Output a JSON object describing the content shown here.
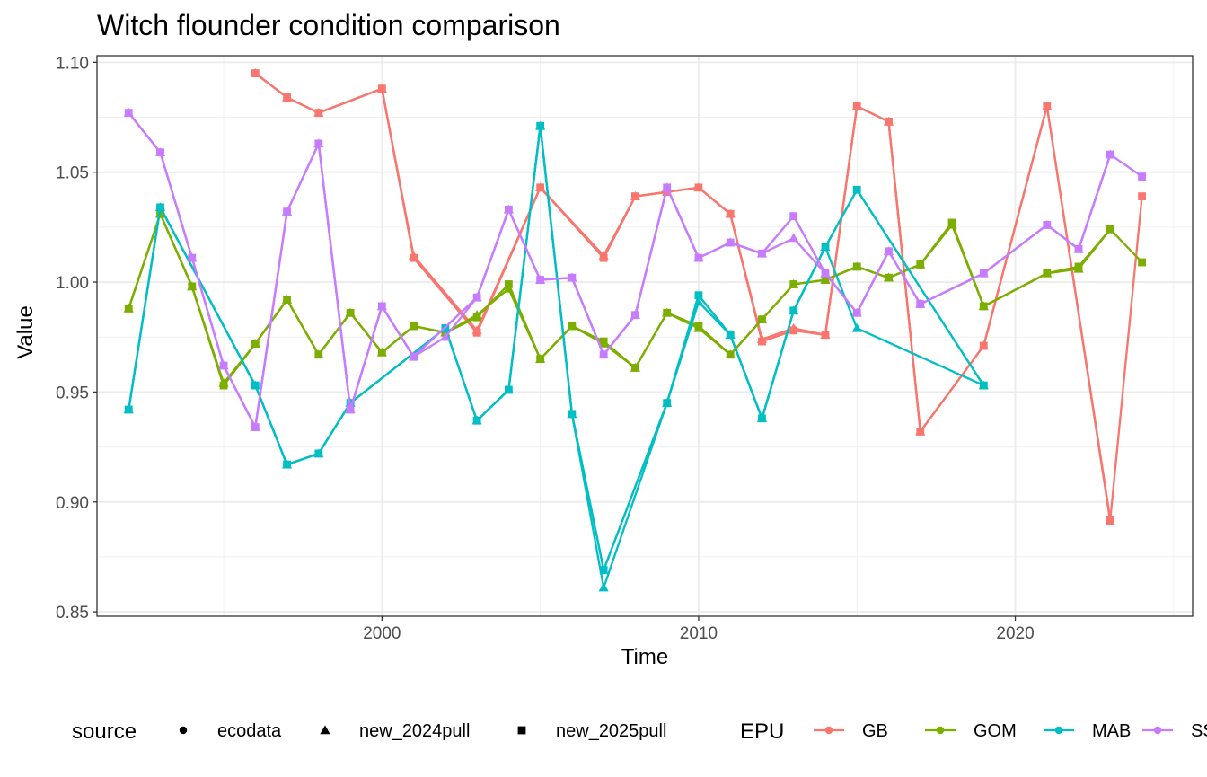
{
  "chart_data": {
    "type": "line",
    "title": "Witch flounder condition comparison",
    "xlabel": "Time",
    "ylabel": "Value",
    "xlim": [
      1991,
      2025.6
    ],
    "ylim": [
      0.848,
      1.103
    ],
    "x_ticks": [
      2000,
      2010,
      2020
    ],
    "y_ticks": [
      0.85,
      0.9,
      0.95,
      1.0,
      1.05,
      1.1
    ],
    "y_tick_labels": [
      "0.85",
      "0.90",
      "0.95",
      "1.00",
      "1.05",
      "1.10"
    ],
    "grid": true,
    "legend_position": "bottom",
    "shape_legend": {
      "title": "source",
      "items": [
        {
          "label": "ecodata",
          "shape": "circle"
        },
        {
          "label": "new_2024pull",
          "shape": "triangle"
        },
        {
          "label": "new_2025pull",
          "shape": "square"
        }
      ]
    },
    "color_legend": {
      "title": "EPU",
      "items": [
        {
          "label": "GB",
          "color": "#F8766D"
        },
        {
          "label": "GOM",
          "color": "#7CAE00"
        },
        {
          "label": "MAB",
          "color": "#00BFC4"
        },
        {
          "label": "SS",
          "color": "#C77CFF"
        }
      ]
    },
    "series": [
      {
        "epu": "GB",
        "source": "ecodata",
        "color": "#F8766D",
        "shape": "circle",
        "x": [
          1996,
          1997,
          1998,
          2000,
          2001,
          2003,
          2005,
          2007,
          2008,
          2009,
          2010,
          2011,
          2012,
          2013,
          2014,
          2015,
          2016,
          2017,
          2019,
          2021
        ],
        "y": [
          1.095,
          1.084,
          1.077,
          1.088,
          1.011,
          0.977,
          1.043,
          1.011,
          1.039,
          1.041,
          1.043,
          1.031,
          0.973,
          0.978,
          0.976,
          1.08,
          1.073,
          0.932,
          0.971,
          1.08
        ]
      },
      {
        "epu": "GB",
        "source": "new_2024pull",
        "color": "#F8766D",
        "shape": "triangle",
        "x": [
          1996,
          1997,
          1998,
          2000,
          2001,
          2003,
          2005,
          2007,
          2008,
          2009,
          2010,
          2011,
          2012,
          2013,
          2014,
          2015,
          2016,
          2017,
          2019,
          2021,
          2023
        ],
        "y": [
          1.095,
          1.084,
          1.077,
          1.088,
          1.012,
          0.978,
          1.043,
          1.012,
          1.039,
          1.041,
          1.043,
          1.031,
          0.974,
          0.979,
          0.976,
          1.08,
          1.073,
          0.932,
          0.971,
          1.08,
          0.891
        ]
      },
      {
        "epu": "GB",
        "source": "new_2025pull",
        "color": "#F8766D",
        "shape": "square",
        "x": [
          1996,
          1997,
          1998,
          2000,
          2001,
          2003,
          2005,
          2007,
          2008,
          2009,
          2010,
          2011,
          2012,
          2013,
          2014,
          2015,
          2016,
          2017,
          2019,
          2021,
          2023,
          2024
        ],
        "y": [
          1.095,
          1.084,
          1.077,
          1.088,
          1.011,
          0.977,
          1.043,
          1.011,
          1.039,
          1.041,
          1.043,
          1.031,
          0.973,
          0.978,
          0.976,
          1.08,
          1.073,
          0.932,
          0.971,
          1.08,
          0.892,
          1.039
        ]
      },
      {
        "epu": "GOM",
        "source": "ecodata",
        "color": "#7CAE00",
        "shape": "circle",
        "x": [
          1992,
          1993,
          1994,
          1995,
          1996,
          1997,
          1998,
          1999,
          2000,
          2001,
          2002,
          2003,
          2004,
          2005,
          2006,
          2007,
          2008,
          2009,
          2010,
          2011,
          2012,
          2013,
          2014,
          2015,
          2016,
          2017,
          2018,
          2019,
          2021,
          2022,
          2023
        ],
        "y": [
          0.988,
          1.031,
          0.998,
          0.953,
          0.972,
          0.992,
          0.967,
          0.986,
          0.968,
          0.98,
          0.977,
          0.984,
          0.999,
          0.965,
          0.98,
          0.973,
          0.961,
          0.986,
          0.98,
          0.967,
          0.983,
          0.999,
          1.001,
          1.007,
          1.002,
          1.008,
          1.027,
          0.989,
          1.004,
          1.007,
          1.024
        ]
      },
      {
        "epu": "GOM",
        "source": "new_2024pull",
        "color": "#7CAE00",
        "shape": "triangle",
        "x": [
          1992,
          1993,
          1994,
          1995,
          1996,
          1997,
          1998,
          1999,
          2000,
          2001,
          2002,
          2003,
          2004,
          2005,
          2006,
          2007,
          2008,
          2009,
          2010,
          2011,
          2012,
          2013,
          2014,
          2015,
          2016,
          2017,
          2018,
          2019,
          2021,
          2022,
          2023
        ],
        "y": [
          0.988,
          1.031,
          0.998,
          0.954,
          0.972,
          0.992,
          0.967,
          0.986,
          0.968,
          0.98,
          0.977,
          0.985,
          0.997,
          0.965,
          0.98,
          0.972,
          0.961,
          0.986,
          0.979,
          0.967,
          0.983,
          0.999,
          1.001,
          1.007,
          1.002,
          1.008,
          1.026,
          0.989,
          1.004,
          1.006,
          1.024
        ]
      },
      {
        "epu": "GOM",
        "source": "new_2025pull",
        "color": "#7CAE00",
        "shape": "square",
        "x": [
          1992,
          1993,
          1994,
          1995,
          1996,
          1997,
          1998,
          1999,
          2000,
          2001,
          2002,
          2003,
          2004,
          2005,
          2006,
          2007,
          2008,
          2009,
          2010,
          2011,
          2012,
          2013,
          2014,
          2015,
          2016,
          2017,
          2018,
          2019,
          2021,
          2022,
          2023,
          2024
        ],
        "y": [
          0.988,
          1.031,
          0.998,
          0.953,
          0.972,
          0.992,
          0.967,
          0.986,
          0.968,
          0.98,
          0.977,
          0.984,
          0.999,
          0.965,
          0.98,
          0.973,
          0.961,
          0.986,
          0.98,
          0.967,
          0.983,
          0.999,
          1.001,
          1.007,
          1.002,
          1.008,
          1.027,
          0.989,
          1.004,
          1.007,
          1.024,
          1.009
        ]
      },
      {
        "epu": "MAB",
        "source": "ecodata",
        "color": "#00BFC4",
        "shape": "circle",
        "x": [
          1992,
          1993,
          1996,
          1997,
          1998,
          1999,
          2002,
          2003,
          2004,
          2005,
          2006,
          2007,
          2009,
          2010,
          2011,
          2012,
          2013,
          2014,
          2015,
          2019
        ],
        "y": [
          0.942,
          1.034,
          0.953,
          0.917,
          0.922,
          0.945,
          0.979,
          0.937,
          0.951,
          1.071,
          0.94,
          0.869,
          0.945,
          0.994,
          0.976,
          0.938,
          0.987,
          1.016,
          1.042,
          0.953
        ]
      },
      {
        "epu": "MAB",
        "source": "new_2024pull",
        "color": "#00BFC4",
        "shape": "triangle",
        "x": [
          1992,
          1993,
          1996,
          1997,
          1998,
          1999,
          2002,
          2003,
          2004,
          2005,
          2006,
          2007,
          2009,
          2010,
          2011,
          2012,
          2013,
          2014,
          2015,
          2019
        ],
        "y": [
          0.942,
          1.034,
          0.953,
          0.917,
          0.922,
          0.945,
          0.979,
          0.937,
          0.951,
          1.071,
          0.94,
          0.861,
          0.945,
          0.991,
          0.976,
          0.938,
          0.987,
          1.016,
          0.979,
          0.953
        ]
      },
      {
        "epu": "MAB",
        "source": "new_2025pull",
        "color": "#00BFC4",
        "shape": "square",
        "x": [
          1992,
          1993,
          1996,
          1997,
          1998,
          1999,
          2002,
          2003,
          2004,
          2005,
          2006,
          2007,
          2009,
          2010,
          2011,
          2012,
          2013,
          2014,
          2015,
          2019
        ],
        "y": [
          0.942,
          1.034,
          0.953,
          0.917,
          0.922,
          0.945,
          0.979,
          0.937,
          0.951,
          1.071,
          0.94,
          0.869,
          0.945,
          0.994,
          0.976,
          0.938,
          0.987,
          1.016,
          1.042,
          0.953
        ]
      },
      {
        "epu": "SS",
        "source": "ecodata",
        "color": "#C77CFF",
        "shape": "circle",
        "x": [
          1992,
          1993,
          1994,
          1995,
          1996,
          1997,
          1998,
          1999,
          2000,
          2001,
          2003,
          2004,
          2005,
          2006,
          2007,
          2008,
          2009,
          2010,
          2011,
          2012,
          2013,
          2014,
          2015,
          2016,
          2017,
          2019,
          2021,
          2022,
          2023
        ],
        "y": [
          1.077,
          1.059,
          1.011,
          0.962,
          0.934,
          1.032,
          1.063,
          0.942,
          0.989,
          0.966,
          0.993,
          1.033,
          1.001,
          1.002,
          0.967,
          0.985,
          1.043,
          1.011,
          1.018,
          1.013,
          1.03,
          1.004,
          0.986,
          1.014,
          0.99,
          1.004,
          1.026,
          1.015,
          1.058
        ]
      },
      {
        "epu": "SS",
        "source": "new_2024pull",
        "color": "#C77CFF",
        "shape": "triangle",
        "x": [
          1992,
          1993,
          1994,
          1995,
          1996,
          1997,
          1998,
          1999,
          2000,
          2001,
          2002,
          2003,
          2004,
          2005,
          2006,
          2007,
          2008,
          2009,
          2010,
          2011,
          2012,
          2013,
          2014,
          2015,
          2016,
          2017,
          2019,
          2021,
          2022,
          2023
        ],
        "y": [
          1.077,
          1.059,
          1.011,
          0.962,
          0.934,
          1.032,
          1.063,
          0.942,
          0.989,
          0.966,
          0.975,
          0.993,
          1.033,
          1.001,
          1.002,
          0.967,
          0.985,
          1.043,
          1.011,
          1.018,
          1.013,
          1.02,
          1.004,
          0.986,
          1.014,
          0.99,
          1.004,
          1.026,
          1.015,
          1.058
        ]
      },
      {
        "epu": "SS",
        "source": "new_2025pull",
        "color": "#C77CFF",
        "shape": "square",
        "x": [
          1992,
          1993,
          1994,
          1995,
          1996,
          1997,
          1998,
          1999,
          2000,
          2001,
          2003,
          2004,
          2005,
          2006,
          2007,
          2008,
          2009,
          2010,
          2011,
          2012,
          2013,
          2014,
          2015,
          2016,
          2017,
          2019,
          2021,
          2022,
          2023,
          2024
        ],
        "y": [
          1.077,
          1.059,
          1.011,
          0.962,
          0.934,
          1.032,
          1.063,
          0.942,
          0.989,
          0.966,
          0.993,
          1.033,
          1.001,
          1.002,
          0.967,
          0.985,
          1.043,
          1.011,
          1.018,
          1.013,
          1.03,
          1.004,
          0.986,
          1.014,
          0.99,
          1.004,
          1.026,
          1.015,
          1.058,
          1.048
        ]
      }
    ]
  }
}
